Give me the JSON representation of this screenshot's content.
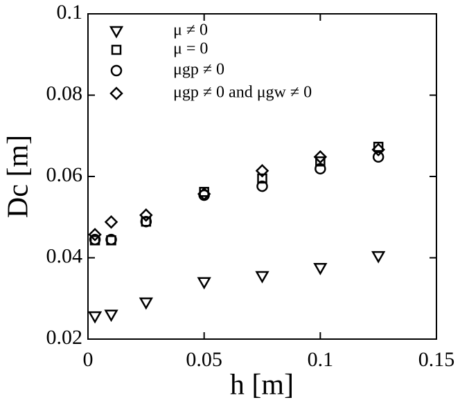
{
  "chart_data": {
    "type": "scatter",
    "x_label": "h [m]",
    "y_label": "Dc [m]",
    "xlim": [
      0,
      0.15
    ],
    "xticks": [
      0,
      0.05,
      0.1,
      0.15
    ],
    "ylim": [
      0.02,
      0.1
    ],
    "yticks": [
      0.02,
      0.04,
      0.06,
      0.08,
      0.1
    ],
    "legend": "top-left",
    "x": [
      0.003,
      0.01,
      0.025,
      0.05,
      0.075,
      0.1,
      0.125
    ],
    "series": [
      {
        "name": "μ ≠ 0",
        "color": "#000000",
        "marker": "triangle-down",
        "values": [
          0.0256,
          0.026,
          0.029,
          0.034,
          0.0355,
          0.0375,
          0.0404
        ]
      },
      {
        "name": "μ = 0",
        "color": "#000000",
        "marker": "square",
        "values": [
          0.0443,
          0.0443,
          0.0489,
          0.0562,
          0.0595,
          0.0637,
          0.0673
        ]
      },
      {
        "name": "μgp ≠ 0",
        "color": "#000000",
        "marker": "circle",
        "values": [
          0.0445,
          0.0445,
          0.0489,
          0.0554,
          0.0576,
          0.0619,
          0.0648
        ]
      },
      {
        "name": "μgp ≠ 0 and μgw ≠ 0",
        "color": "#000000",
        "marker": "diamond",
        "values": [
          0.0457,
          0.0488,
          0.0505,
          0.0557,
          0.0614,
          0.0648,
          0.0666
        ]
      }
    ]
  }
}
